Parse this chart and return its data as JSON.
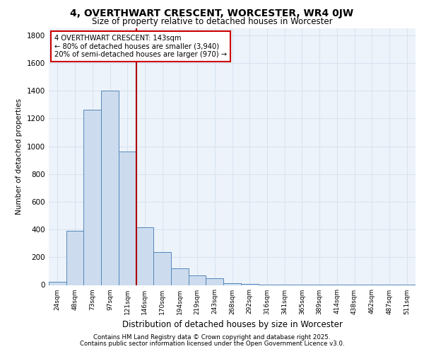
{
  "title1": "4, OVERTHWART CRESCENT, WORCESTER, WR4 0JW",
  "title2": "Size of property relative to detached houses in Worcester",
  "xlabel": "Distribution of detached houses by size in Worcester",
  "ylabel": "Number of detached properties",
  "categories": [
    "24sqm",
    "48sqm",
    "73sqm",
    "97sqm",
    "121sqm",
    "146sqm",
    "170sqm",
    "194sqm",
    "219sqm",
    "243sqm",
    "268sqm",
    "292sqm",
    "316sqm",
    "341sqm",
    "365sqm",
    "389sqm",
    "414sqm",
    "438sqm",
    "462sqm",
    "487sqm",
    "511sqm"
  ],
  "values": [
    25,
    390,
    1265,
    1400,
    960,
    415,
    235,
    120,
    70,
    50,
    15,
    10,
    5,
    5,
    5,
    5,
    5,
    5,
    5,
    5,
    5
  ],
  "bar_color": "#ccdcee",
  "bar_edge_color": "#5588bb",
  "grid_color": "#d8e4f0",
  "background_color": "#edf3fb",
  "vline_color": "#aa0000",
  "annotation_text": "4 OVERTHWART CRESCENT: 143sqm\n← 80% of detached houses are smaller (3,940)\n20% of semi-detached houses are larger (970) →",
  "annotation_box_color": "#ffffff",
  "annotation_box_edge": "#cc0000",
  "ylim": [
    0,
    1850
  ],
  "yticks": [
    0,
    200,
    400,
    600,
    800,
    1000,
    1200,
    1400,
    1600,
    1800
  ],
  "footnote1": "Contains HM Land Registry data © Crown copyright and database right 2025.",
  "footnote2": "Contains public sector information licensed under the Open Government Licence v3.0."
}
